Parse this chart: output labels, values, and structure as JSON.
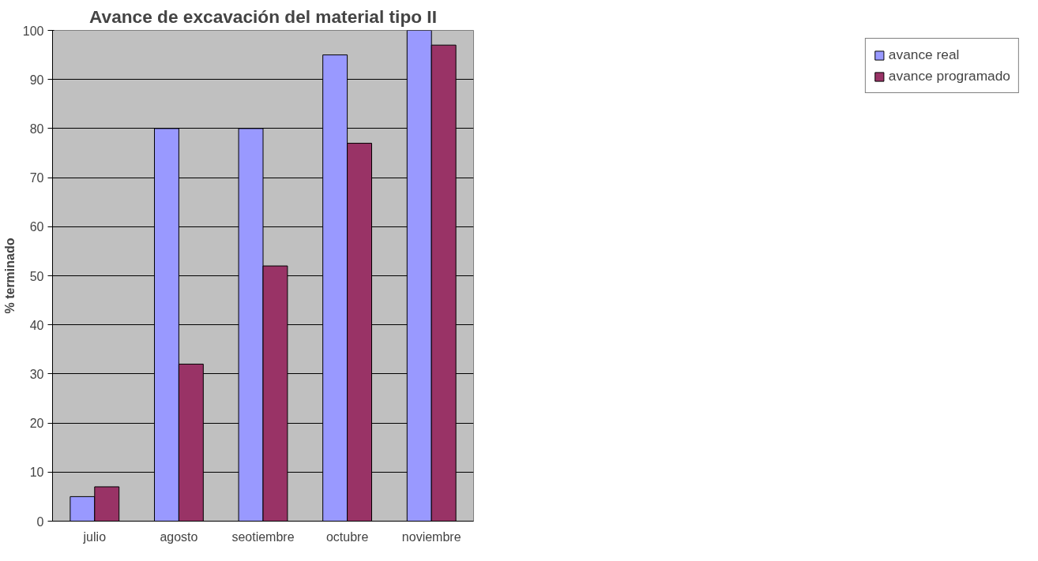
{
  "chart_data": {
    "type": "bar",
    "title": "Avance de excavación del material tipo II",
    "ylabel": "% terminado",
    "categories": [
      "julio",
      "agosto",
      "seotiembre",
      "octubre",
      "noviembre"
    ],
    "series": [
      {
        "name": "avance real",
        "color": "#9999ff",
        "values": [
          5,
          80,
          80,
          95,
          100
        ]
      },
      {
        "name": "avance programado",
        "color": "#993366",
        "values": [
          7,
          32,
          52,
          77,
          97
        ]
      }
    ],
    "ylim": [
      0,
      100
    ],
    "yticks": [
      0,
      10,
      20,
      30,
      40,
      50,
      60,
      70,
      80,
      90,
      100
    ],
    "grid": "y",
    "legend": "right"
  }
}
